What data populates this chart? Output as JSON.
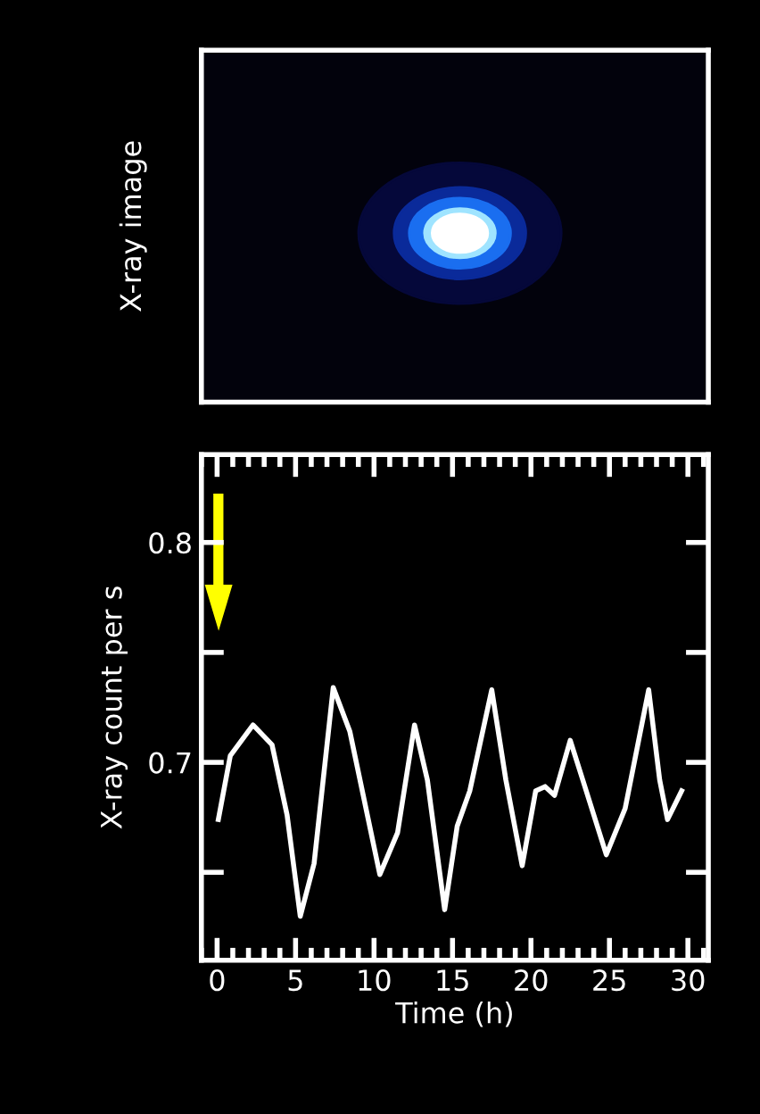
{
  "chart_data": [
    {
      "type": "other",
      "ylabel": "X-ray image"
    },
    {
      "type": "line",
      "xlabel": "Time (h)",
      "ylabel": "X-ray count per s",
      "x": [
        0.08,
        0.84,
        2.29,
        3.5,
        4.46,
        5.3,
        6.18,
        7.4,
        8.46,
        10.37,
        11.5,
        12.58,
        13.4,
        14.5,
        15.3,
        16.1,
        17.5,
        18.4,
        19.44,
        20.3,
        20.9,
        21.5,
        22.5,
        23.3,
        24.8,
        26.0,
        27.5,
        28.2,
        28.7,
        29.6
      ],
      "series": [
        {
          "color": "#ffffff",
          "values": [
            0.674,
            0.703,
            0.717,
            0.708,
            0.676,
            0.63,
            0.654,
            0.734,
            0.714,
            0.649,
            0.668,
            0.717,
            0.692,
            0.633,
            0.671,
            0.687,
            0.733,
            0.692,
            0.653,
            0.687,
            0.689,
            0.685,
            0.71,
            0.692,
            0.658,
            0.679,
            0.733,
            0.692,
            0.674,
            0.687
          ]
        }
      ],
      "xlim": [
        -1.0,
        31.3
      ],
      "ylim": [
        0.61,
        0.84
      ],
      "xticks": [
        0,
        5,
        10,
        15,
        20,
        25,
        30
      ],
      "yticks": [
        0.8,
        {
          "value": 0.75,
          "label": null
        },
        0.7,
        {
          "value": 0.65,
          "label": null
        }
      ],
      "grid": false,
      "legend": false,
      "marker": "none",
      "line_style": "solid"
    }
  ]
}
